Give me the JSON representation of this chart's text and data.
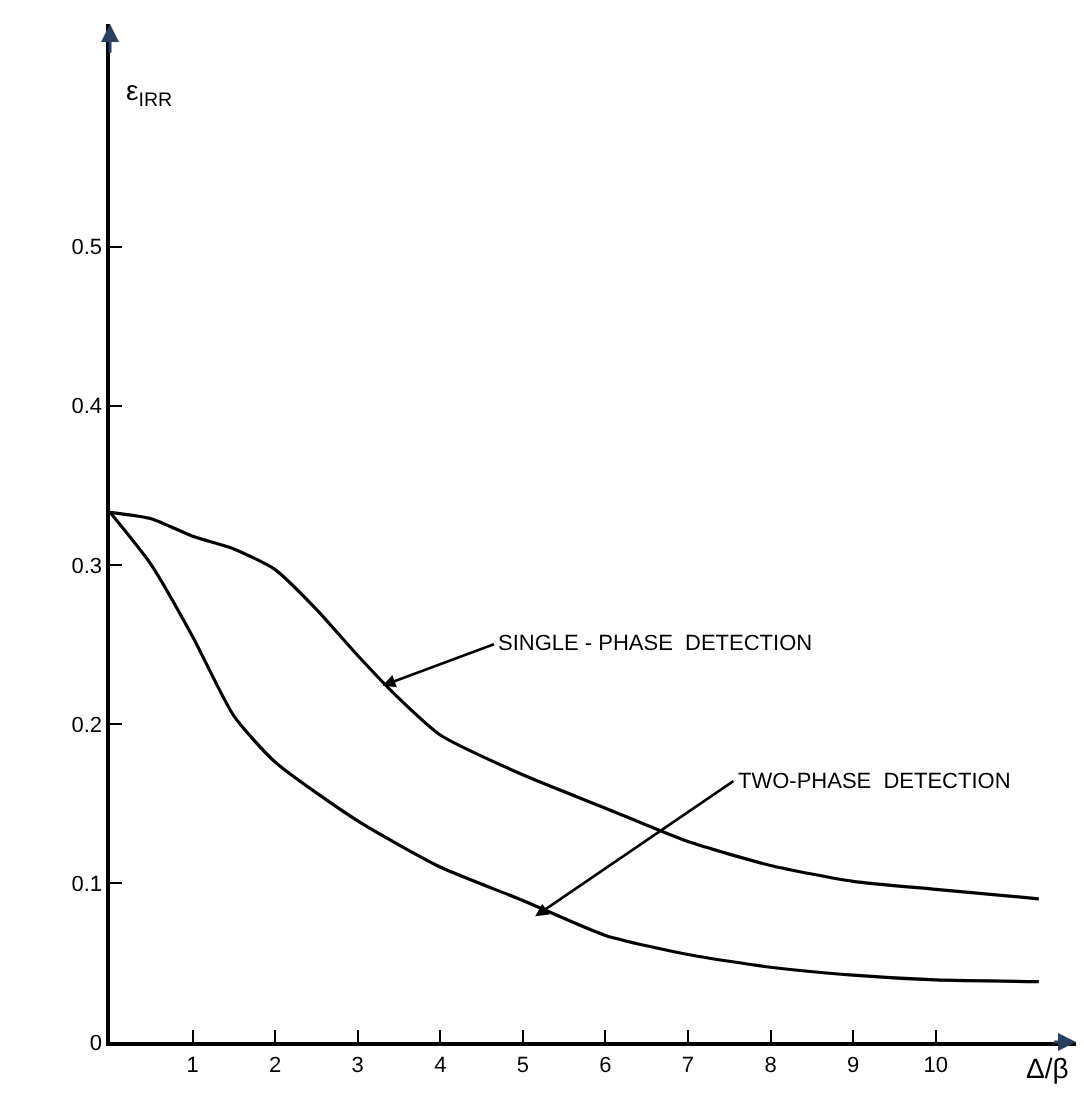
{
  "chart_data": {
    "type": "line",
    "xlabel": "Δ/β",
    "ylabel": "ε$_{IRR}$",
    "xlim": [
      0,
      11.7
    ],
    "ylim": [
      0,
      0.64
    ],
    "xticks": [
      1,
      2,
      3,
      4,
      5,
      6,
      7,
      8,
      9,
      10
    ],
    "yticks": [
      0,
      0.1,
      0.2,
      0.3,
      0.4,
      0.5
    ],
    "legend": false,
    "marker": "none",
    "line_style": "solid",
    "series": [
      {
        "color": "#000000",
        "x": [
          0,
          0.5,
          1,
          1.5,
          2,
          2.5,
          3,
          3.5,
          4,
          5,
          6,
          7,
          8,
          9,
          10,
          11.25
        ],
        "values": [
          0.333,
          0.329,
          0.318,
          0.31,
          0.297,
          0.272,
          0.243,
          0.216,
          0.193,
          0.168,
          0.147,
          0.126,
          0.111,
          0.101,
          0.096,
          0.09
        ]
      },
      {
        "color": "#000000",
        "x": [
          0,
          0.5,
          1,
          1.5,
          2,
          3,
          4,
          5,
          6,
          7,
          8,
          9,
          10,
          11.25
        ],
        "values": [
          0.333,
          0.3,
          0.255,
          0.205,
          0.176,
          0.139,
          0.11,
          0.089,
          0.067,
          0.055,
          0.047,
          0.042,
          0.039,
          0.038
        ]
      }
    ],
    "annotations": [
      {
        "text": "SINGLE - PHASE  DETECTION",
        "x": 3.3,
        "y": 0.224
      },
      {
        "text": "TWO-PHASE  DETECTION",
        "x": 5.15,
        "y": 0.079
      }
    ]
  }
}
